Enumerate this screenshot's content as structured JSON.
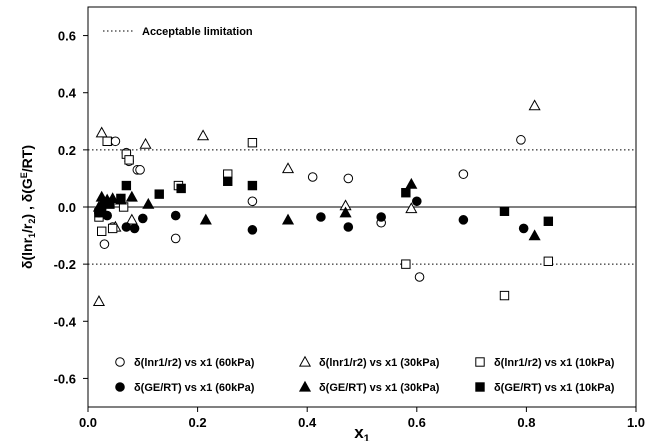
{
  "chart_data": {
    "type": "scatter",
    "title": "",
    "xlabel": "x1",
    "ylabel": "δ(lnr1/r2) , δ(GE/RT)",
    "xlim": [
      0.0,
      1.0
    ],
    "ylim": [
      -0.7,
      0.7
    ],
    "x_ticks": [
      "0.0",
      "0.2",
      "0.4",
      "0.6",
      "0.8",
      "1.0"
    ],
    "y_ticks": [
      "0.6",
      "0.4",
      "0.2",
      "0.0",
      "-0.2",
      "-0.4",
      "-0.6"
    ],
    "grid": false,
    "reference_lines": [
      {
        "y": 0.2,
        "style": "dotted"
      },
      {
        "y": -0.2,
        "style": "dotted"
      },
      {
        "y": 0.0,
        "style": "solid"
      }
    ],
    "top_legend": {
      "label": "Acceptable limitation",
      "style": "dotted"
    },
    "legend_position": "bottom",
    "series": [
      {
        "name": "δ(lnr1/r2) vs x1 (60kPa)",
        "marker": "circle",
        "filled": false,
        "x": [
          0.02,
          0.03,
          0.04,
          0.045,
          0.05,
          0.07,
          0.075,
          0.09,
          0.095,
          0.16,
          0.3,
          0.41,
          0.475,
          0.535,
          0.605,
          0.685,
          0.79
        ],
        "y": [
          -0.02,
          -0.13,
          0.23,
          -0.07,
          0.23,
          0.19,
          0.16,
          0.13,
          0.13,
          -0.11,
          0.02,
          0.105,
          0.1,
          -0.055,
          -0.245,
          0.115,
          0.235
        ]
      },
      {
        "name": "δ(lnr1/r2) vs x1 (30kPa)",
        "marker": "triangle",
        "filled": false,
        "x": [
          0.02,
          0.025,
          0.05,
          0.08,
          0.105,
          0.21,
          0.365,
          0.47,
          0.59,
          0.815
        ],
        "y": [
          -0.33,
          0.26,
          -0.07,
          -0.045,
          0.22,
          0.25,
          0.135,
          0.005,
          -0.005,
          0.355
        ]
      },
      {
        "name": "δ(lnr1/r2) vs x1 (10kPa)",
        "marker": "square",
        "filled": false,
        "x": [
          0.02,
          0.025,
          0.035,
          0.045,
          0.065,
          0.07,
          0.075,
          0.165,
          0.255,
          0.3,
          0.58,
          0.76,
          0.84
        ],
        "y": [
          -0.035,
          -0.085,
          0.23,
          -0.075,
          0.0,
          0.185,
          0.165,
          0.075,
          0.115,
          0.225,
          -0.2,
          -0.31,
          -0.19
        ]
      },
      {
        "name": "δ(GE/RT) vs x1 (60kPa)",
        "marker": "circle",
        "filled": true,
        "x": [
          0.02,
          0.035,
          0.07,
          0.085,
          0.1,
          0.16,
          0.3,
          0.425,
          0.475,
          0.535,
          0.6,
          0.685,
          0.795
        ],
        "y": [
          -0.02,
          -0.03,
          -0.07,
          -0.075,
          -0.04,
          -0.03,
          -0.08,
          -0.035,
          -0.07,
          -0.035,
          0.02,
          -0.045,
          -0.075
        ]
      },
      {
        "name": "δ(GE/RT) vs x1 (30kPa)",
        "marker": "triangle",
        "filled": true,
        "x": [
          0.02,
          0.025,
          0.035,
          0.045,
          0.06,
          0.08,
          0.11,
          0.215,
          0.365,
          0.47,
          0.59,
          0.815
        ],
        "y": [
          0.0,
          0.035,
          0.025,
          0.03,
          0.025,
          0.035,
          0.01,
          -0.045,
          -0.045,
          -0.02,
          0.08,
          -0.1
        ]
      },
      {
        "name": "δ(GE/RT) vs x1 (10kPa)",
        "marker": "square",
        "filled": true,
        "x": [
          0.02,
          0.025,
          0.03,
          0.04,
          0.06,
          0.07,
          0.13,
          0.17,
          0.255,
          0.3,
          0.58,
          0.76,
          0.84
        ],
        "y": [
          -0.02,
          -0.005,
          0.015,
          0.01,
          0.03,
          0.075,
          0.045,
          0.065,
          0.09,
          0.075,
          0.05,
          -0.015,
          -0.05
        ]
      }
    ]
  }
}
